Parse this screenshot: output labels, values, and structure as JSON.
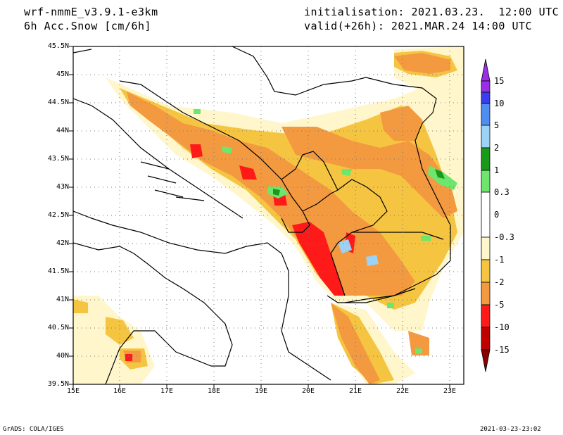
{
  "header": {
    "model": "wrf-nmmE_v3.9.1-e3km",
    "field": "6h Acc.Snow [cm/6h]",
    "init": "initialisation: 2021.03.23.  12:00 UTC",
    "valid": "valid(+26h): 2021.MAR.24 14:00 UTC"
  },
  "footer": {
    "left": "GrADS: COLA/IGES",
    "right": "2021-03-23-23:02"
  },
  "map": {
    "lat_ticks": [
      "45.5N",
      "45N",
      "44.5N",
      "44N",
      "43.5N",
      "43N",
      "42.5N",
      "42N",
      "41.5N",
      "41N",
      "40.5N",
      "40N",
      "39.5N"
    ],
    "lon_ticks": [
      "15E",
      "16E",
      "17E",
      "18E",
      "19E",
      "20E",
      "21E",
      "22E",
      "23E"
    ],
    "lat_range": [
      39.5,
      45.5
    ],
    "lon_range": [
      15,
      23.3
    ],
    "grid": "dotted"
  },
  "colorbar": {
    "labels": [
      "15",
      "10",
      "5",
      "2",
      "1",
      "0.3",
      "0",
      "-0.3",
      "-1",
      "-2",
      "-5",
      "-10",
      "-15"
    ],
    "colors": [
      "#9a2fe8",
      "#3c3cf0",
      "#4f8ef0",
      "#9cd2f5",
      "#1a9a1a",
      "#6ee66e",
      "#ffffff",
      "#fff6cc",
      "#f5c542",
      "#f39a40",
      "#ff1a1a",
      "#c00000",
      "#8a0000"
    ]
  }
}
